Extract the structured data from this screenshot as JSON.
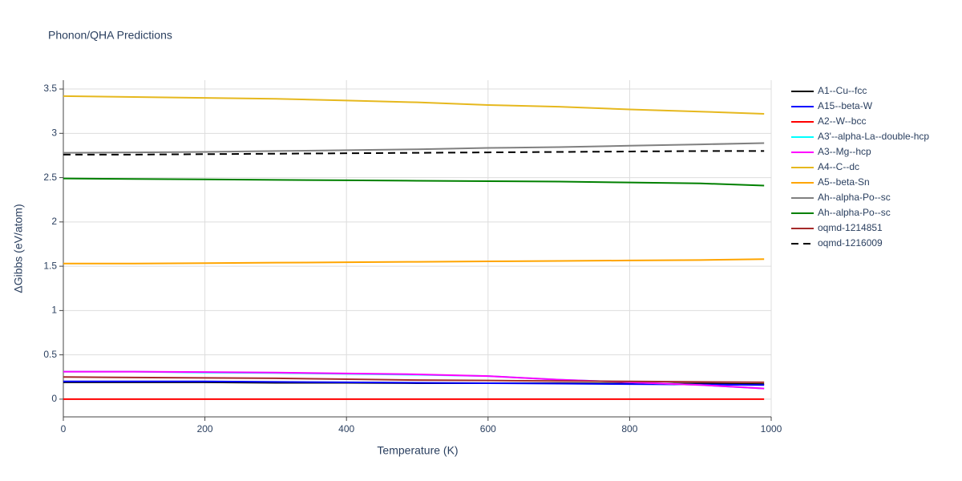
{
  "chart_data": {
    "type": "line",
    "title": "Phonon/QHA Predictions",
    "x_label": "Temperature (K)",
    "y_label": "ΔGibbs (eV/atom)",
    "x": [
      0,
      100,
      200,
      300,
      400,
      500,
      600,
      700,
      800,
      900,
      990
    ],
    "series": [
      {
        "name": "A1--Cu--fcc",
        "color": "#000000",
        "values": [
          0.19,
          0.19,
          0.19,
          0.185,
          0.185,
          0.18,
          0.18,
          0.18,
          0.175,
          0.175,
          0.17
        ]
      },
      {
        "name": "A15--beta-W",
        "color": "#0000ff",
        "values": [
          0.2,
          0.2,
          0.2,
          0.195,
          0.19,
          0.185,
          0.18,
          0.175,
          0.17,
          0.165,
          0.16
        ]
      },
      {
        "name": "A2--W--bcc",
        "color": "#ff0000",
        "values": [
          0,
          0,
          0,
          0,
          0,
          0,
          0,
          0,
          0,
          0,
          0
        ]
      },
      {
        "name": "A3'--alpha-La--double-hcp",
        "color": "#00ffff",
        "values": [
          0.31,
          0.31,
          0.3,
          0.295,
          0.285,
          0.275,
          0.26,
          0.22,
          0.19,
          0.16,
          0.12
        ]
      },
      {
        "name": "A3--Mg--hcp",
        "color": "#ff00ff",
        "values": [
          0.31,
          0.31,
          0.305,
          0.3,
          0.29,
          0.28,
          0.26,
          0.22,
          0.19,
          0.16,
          0.12
        ]
      },
      {
        "name": "A4--C--dc",
        "color": "#e6b81e",
        "values": [
          3.42,
          3.41,
          3.4,
          3.39,
          3.37,
          3.35,
          3.32,
          3.3,
          3.27,
          3.245,
          3.22
        ]
      },
      {
        "name": "A5--beta-Sn",
        "color": "#ffa500",
        "values": [
          1.53,
          1.53,
          1.535,
          1.54,
          1.545,
          1.55,
          1.555,
          1.56,
          1.565,
          1.57,
          1.58
        ]
      },
      {
        "name": "Ah--alpha-Po--sc",
        "color": "#808080",
        "values": [
          2.78,
          2.785,
          2.79,
          2.8,
          2.81,
          2.82,
          2.835,
          2.845,
          2.86,
          2.875,
          2.89
        ]
      },
      {
        "name": "Ah--alpha-Po--sc",
        "color": "#008000",
        "values": [
          2.49,
          2.485,
          2.48,
          2.475,
          2.47,
          2.465,
          2.46,
          2.455,
          2.445,
          2.435,
          2.41
        ]
      },
      {
        "name": "oqmd-1214851",
        "color": "#a52a2a",
        "values": [
          0.25,
          0.245,
          0.24,
          0.235,
          0.225,
          0.215,
          0.21,
          0.205,
          0.2,
          0.195,
          0.19
        ]
      },
      {
        "name": "oqmd-1216009",
        "color": "#000000",
        "dash": "dash",
        "values": [
          2.76,
          2.76,
          2.765,
          2.77,
          2.775,
          2.78,
          2.785,
          2.79,
          2.795,
          2.8,
          2.8
        ]
      }
    ],
    "xlim": [
      0,
      1000
    ],
    "ylim": [
      -0.2,
      3.6
    ],
    "xticks": [
      0,
      200,
      400,
      600,
      800,
      1000
    ],
    "yticks": [
      0,
      0.5,
      1,
      1.5,
      2,
      2.5,
      3,
      3.5
    ],
    "grid": true
  }
}
